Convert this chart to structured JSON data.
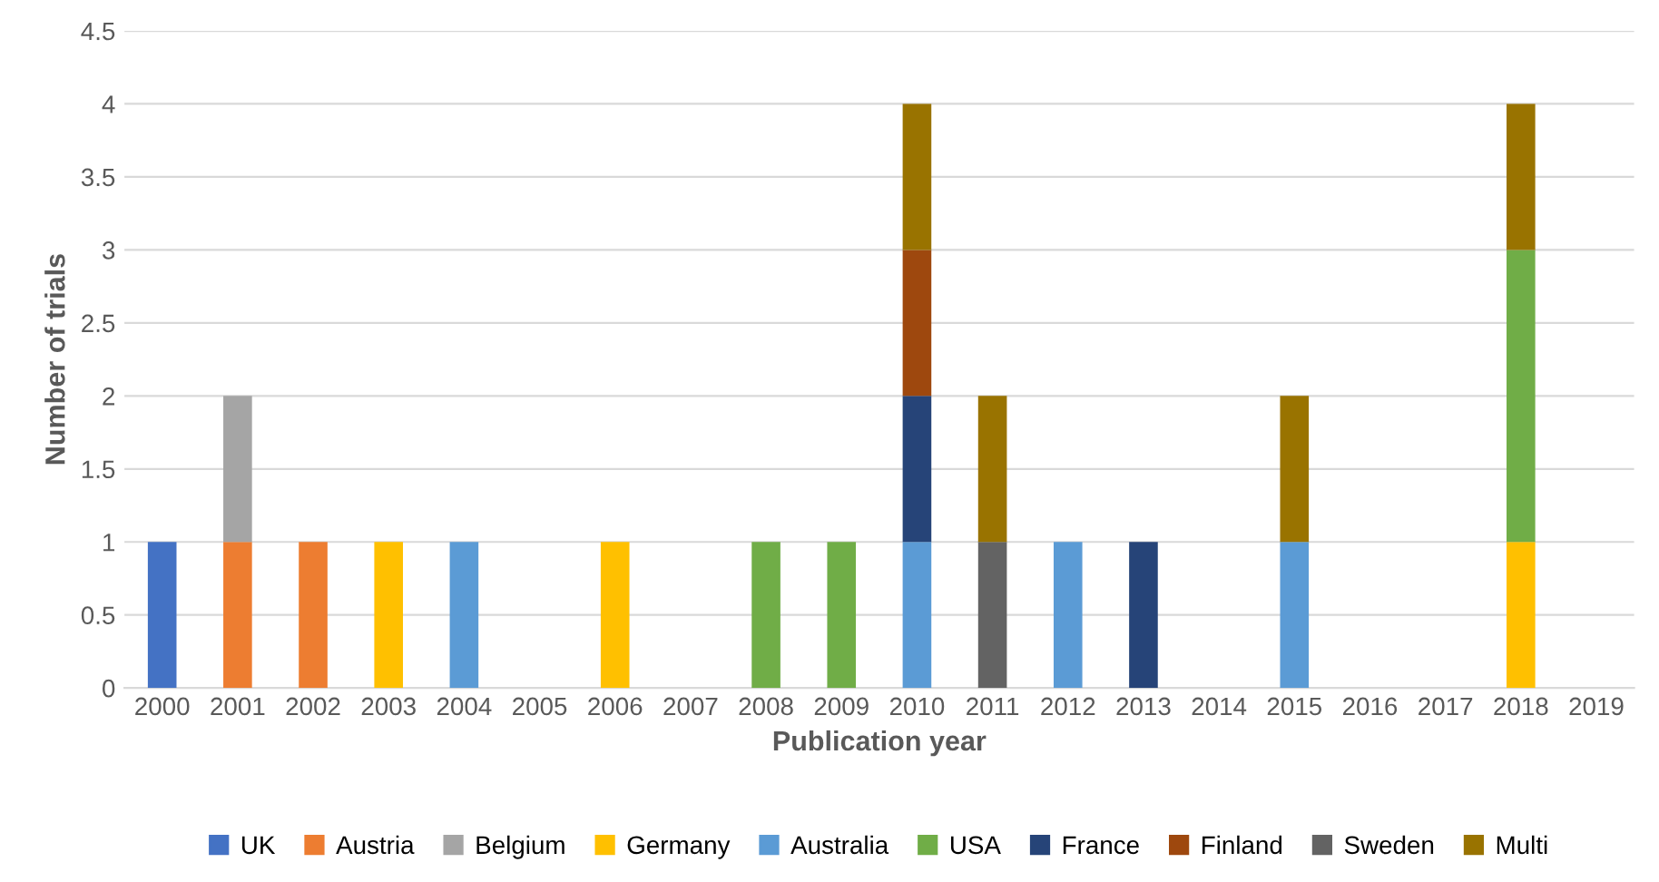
{
  "chart_data": {
    "type": "bar",
    "stacked": true,
    "xlabel": "Publication year",
    "ylabel": "Number of trials",
    "categories": [
      "2000",
      "2001",
      "2002",
      "2003",
      "2004",
      "2005",
      "2006",
      "2007",
      "2008",
      "2009",
      "2010",
      "2011",
      "2012",
      "2013",
      "2014",
      "2015",
      "2016",
      "2017",
      "2018",
      "2019"
    ],
    "series": [
      {
        "name": "UK",
        "color": "#4472c4",
        "values": [
          1,
          null,
          null,
          null,
          null,
          null,
          null,
          null,
          null,
          null,
          null,
          null,
          null,
          null,
          null,
          null,
          null,
          null,
          null,
          null
        ]
      },
      {
        "name": "Austria",
        "color": "#ed7d31",
        "values": [
          null,
          1,
          1,
          null,
          null,
          null,
          null,
          null,
          null,
          null,
          null,
          null,
          null,
          null,
          null,
          null,
          null,
          null,
          null,
          null
        ]
      },
      {
        "name": "Belgium",
        "color": "#a5a5a5",
        "values": [
          null,
          1,
          null,
          null,
          null,
          null,
          null,
          null,
          null,
          null,
          null,
          null,
          null,
          null,
          null,
          null,
          null,
          null,
          null,
          null
        ]
      },
      {
        "name": "Germany",
        "color": "#ffc000",
        "values": [
          null,
          null,
          null,
          1,
          null,
          null,
          1,
          null,
          null,
          null,
          null,
          null,
          null,
          null,
          null,
          null,
          null,
          null,
          1,
          null
        ]
      },
      {
        "name": "Australia",
        "color": "#5b9bd5",
        "values": [
          null,
          null,
          null,
          null,
          1,
          null,
          null,
          null,
          null,
          null,
          1,
          null,
          1,
          null,
          null,
          1,
          null,
          null,
          null,
          null
        ]
      },
      {
        "name": "USA",
        "color": "#70ad47",
        "values": [
          null,
          null,
          null,
          null,
          null,
          null,
          null,
          null,
          1,
          1,
          null,
          null,
          null,
          null,
          null,
          null,
          null,
          null,
          2,
          null
        ]
      },
      {
        "name": "France",
        "color": "#264478",
        "values": [
          null,
          null,
          null,
          null,
          null,
          null,
          null,
          null,
          null,
          null,
          1,
          null,
          null,
          1,
          null,
          null,
          null,
          null,
          null,
          null
        ]
      },
      {
        "name": "Finland",
        "color": "#9e480e",
        "values": [
          null,
          null,
          null,
          null,
          null,
          null,
          null,
          null,
          null,
          null,
          1,
          null,
          null,
          null,
          null,
          null,
          null,
          null,
          null,
          null
        ]
      },
      {
        "name": "Sweden",
        "color": "#636363",
        "values": [
          null,
          null,
          null,
          null,
          null,
          null,
          null,
          null,
          null,
          null,
          null,
          1,
          null,
          null,
          null,
          null,
          null,
          null,
          null,
          null
        ]
      },
      {
        "name": "Multi",
        "color": "#997300",
        "values": [
          null,
          null,
          null,
          null,
          null,
          null,
          null,
          null,
          null,
          null,
          1,
          1,
          null,
          null,
          null,
          1,
          null,
          null,
          1,
          null
        ]
      }
    ],
    "ylim": [
      0,
      4.5
    ],
    "yticks": [
      0,
      0.5,
      1,
      1.5,
      2,
      2.5,
      3,
      3.5,
      4,
      4.5
    ],
    "grid": "y",
    "legend": "bottom"
  }
}
